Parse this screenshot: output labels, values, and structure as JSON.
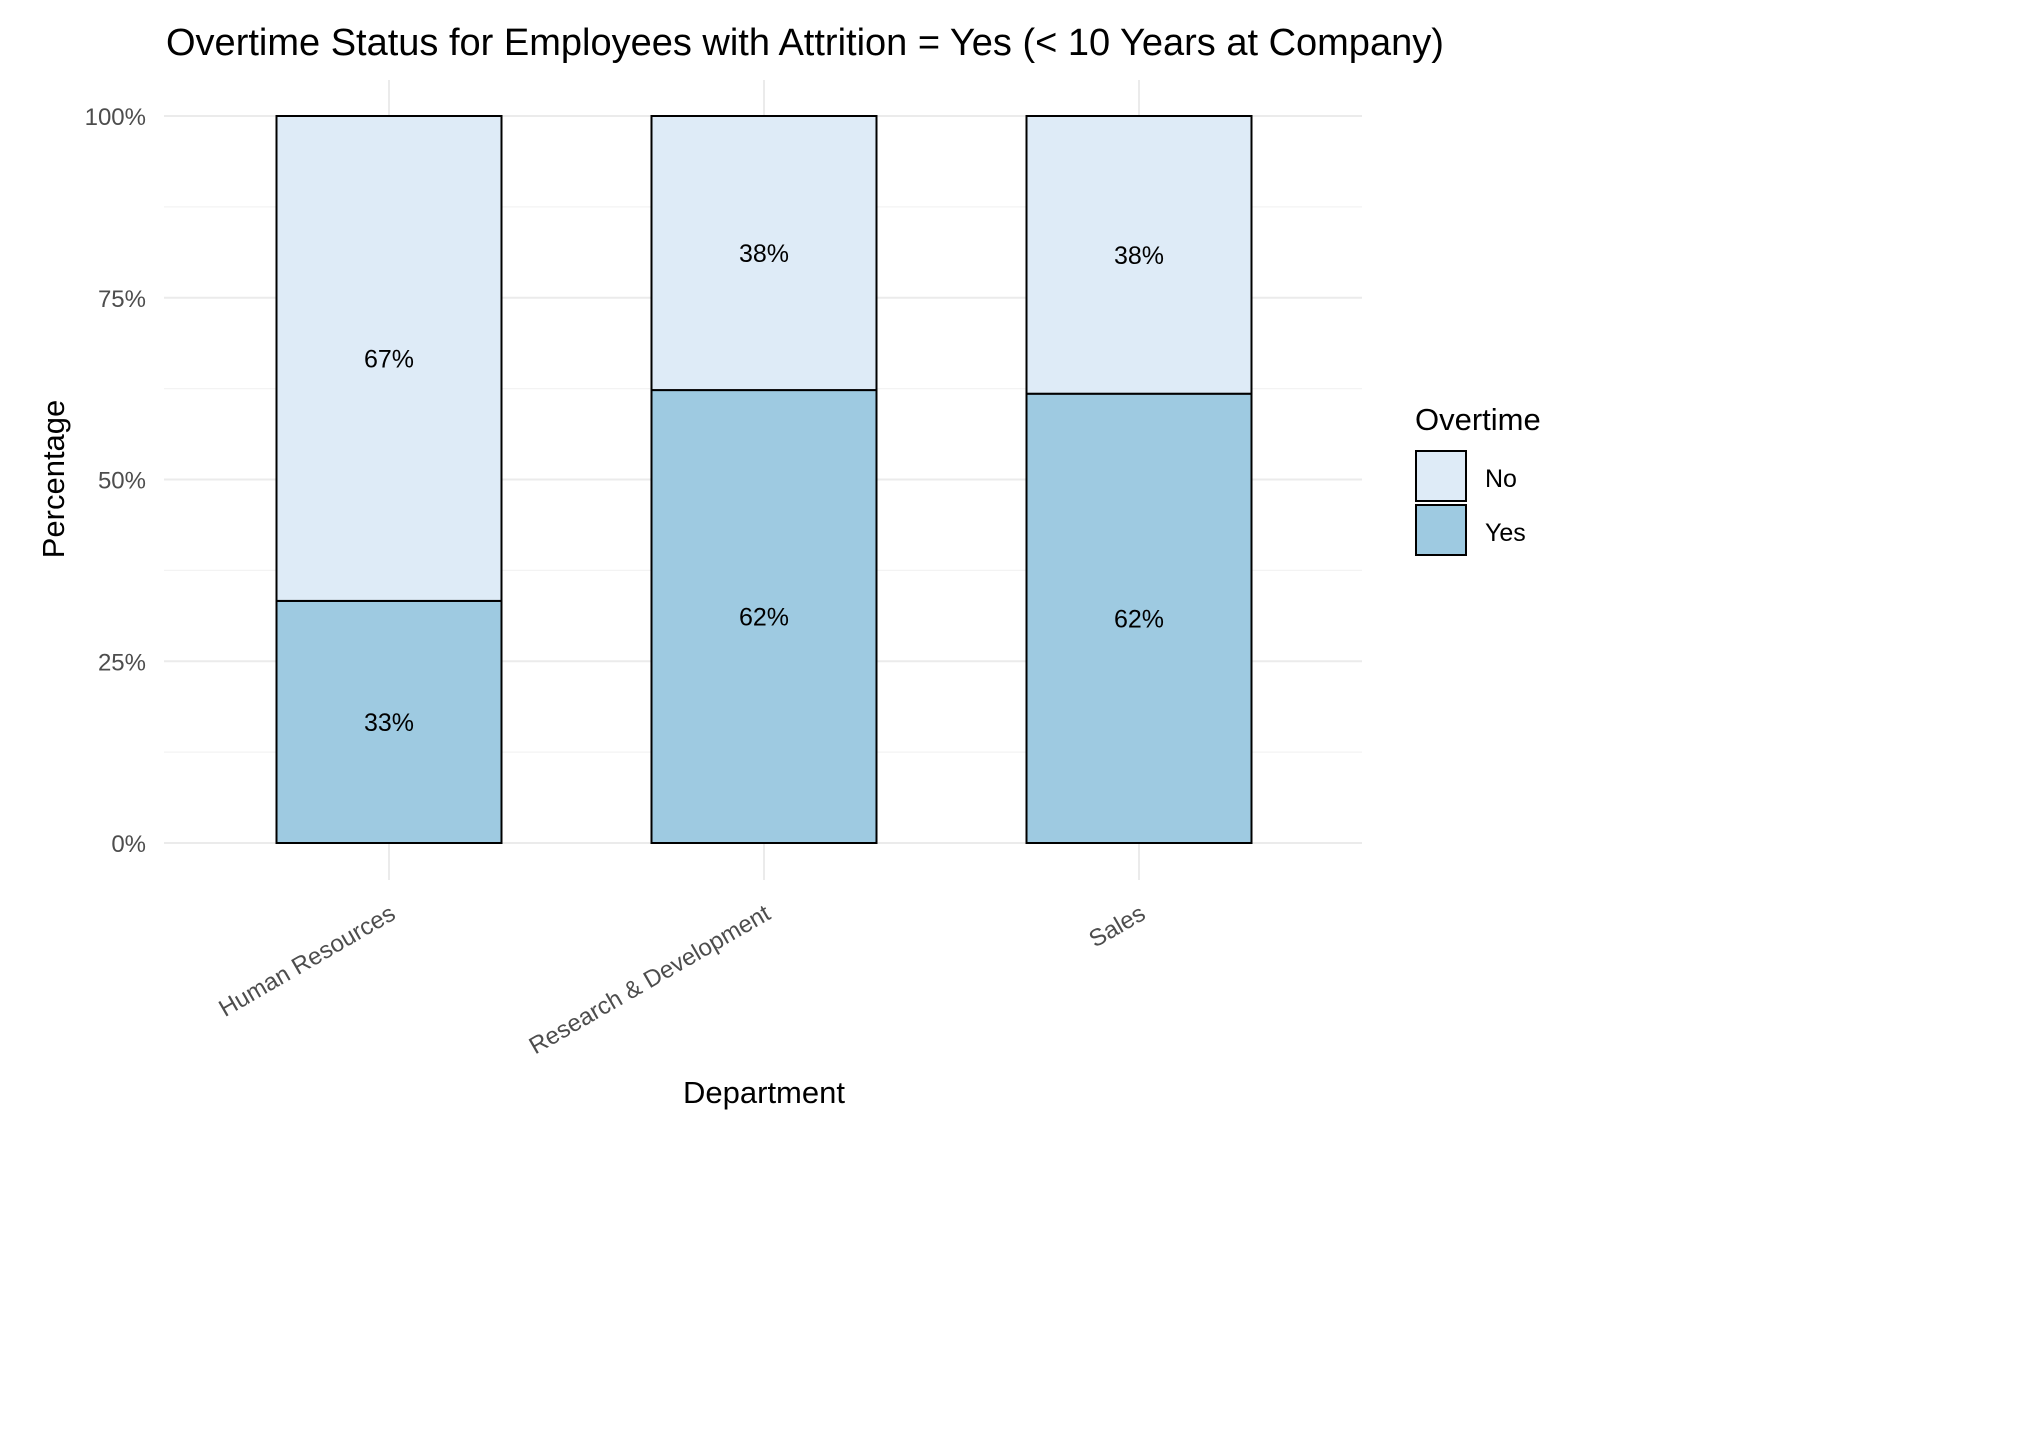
{
  "chart_data": {
    "type": "bar",
    "stacked": true,
    "title": "Overtime Status for Employees with Attrition = Yes (< 10 Years at Company)",
    "xlabel": "Department",
    "ylabel": "Percentage",
    "categories": [
      "Human Resources",
      "Research & Development",
      "Sales"
    ],
    "series": [
      {
        "name": "Yes",
        "values": [
          33.3,
          62.3,
          61.8
        ],
        "labels": [
          "33%",
          "62%",
          "62%"
        ]
      },
      {
        "name": "No",
        "values": [
          66.7,
          37.7,
          38.2
        ],
        "labels": [
          "67%",
          "38%",
          "38%"
        ]
      }
    ],
    "ylim": [
      0,
      100
    ],
    "yticks": [
      0,
      25,
      50,
      75,
      100
    ],
    "ytick_labels": [
      "0%",
      "25%",
      "50%",
      "75%",
      "100%"
    ],
    "grid": true,
    "legend": {
      "title": "Overtime",
      "entries": [
        "No",
        "Yes"
      ],
      "placement": "right"
    },
    "colors": {
      "Yes": "#9ecae1",
      "No": "#deebf7",
      "outline": "#000000"
    }
  }
}
